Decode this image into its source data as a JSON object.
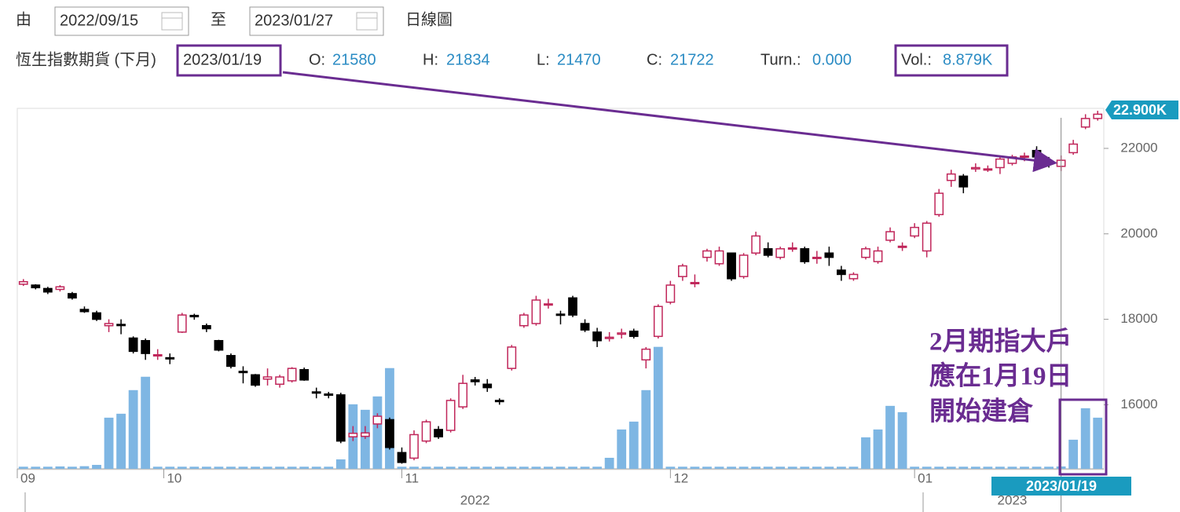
{
  "controls": {
    "from_label": "由",
    "from_date": "2022/09/15",
    "to_label": "至",
    "to_date": "2023/01/27",
    "chart_type": "日線圖"
  },
  "info": {
    "instrument": "恆生指數期貨 (下月)",
    "date": "2023/01/19",
    "open_label": "O:",
    "open": "21580",
    "high_label": "H:",
    "high": "21834",
    "low_label": "L:",
    "low": "21470",
    "close_label": "C:",
    "close": "21722",
    "turnover_label": "Turn.:",
    "turnover": "0.000",
    "volume_label": "Vol.:",
    "volume": "8.879K"
  },
  "annotation": [
    "2月期指大戶",
    "應在1月19日",
    "開始建倉"
  ],
  "chart_data": {
    "type": "candlestick",
    "up_color": "#c0265a",
    "down_color": "#000000",
    "volume_color": "#7eb6e3",
    "ylim": [
      14500,
      22900
    ],
    "yticks": [
      16000,
      18000,
      20000,
      22000
    ],
    "last_price": {
      "value": 22900,
      "label": "22.900K"
    },
    "y2lim": [
      0,
      500
    ],
    "xlim": [
      -0.5,
      88.5
    ],
    "xticks": [
      {
        "value": -0.5,
        "label": "09"
      },
      {
        "value": 11.5,
        "label": "10"
      },
      {
        "value": 31,
        "label": "11"
      },
      {
        "value": 53,
        "label": "12"
      },
      {
        "value": 73,
        "label": "01"
      }
    ],
    "year_ticks": [
      {
        "value": 37,
        "label": "2022"
      },
      {
        "value": 81,
        "label": "2023"
      }
    ],
    "cursor": {
      "value": 85,
      "label": "2023/01/19"
    },
    "open": [
      18820,
      18800,
      18720,
      18700,
      18600,
      18230,
      18150,
      17850,
      17880,
      17560,
      17500,
      17150,
      17100,
      17700,
      18090,
      17850,
      17500,
      17150,
      16780,
      16700,
      16600,
      16480,
      16560,
      16820,
      16300,
      16250,
      16230,
      15250,
      15260,
      15550,
      15650,
      14880,
      14750,
      15150,
      15420,
      15400,
      15950,
      16580,
      16480,
      16100,
      16850,
      17850,
      17900,
      18350,
      18120,
      18500,
      17900,
      17700,
      17550,
      17650,
      17720,
      17050,
      17600,
      18400,
      19000,
      18850,
      19450,
      19300,
      19550,
      19000,
      19550,
      19650,
      19450,
      19650,
      19650,
      19430,
      19550,
      19150,
      18950,
      19450,
      19350,
      19850,
      19700,
      19950,
      19600,
      20450,
      21250,
      21350,
      21520,
      21500,
      21550,
      21650,
      21800,
      21950,
      21700,
      21580,
      21900,
      22500,
      22700
    ],
    "high": [
      18940,
      18820,
      18760,
      18800,
      18640,
      18300,
      18200,
      18000,
      18000,
      17600,
      17550,
      17300,
      17200,
      18150,
      18130,
      17900,
      17520,
      17200,
      16900,
      16720,
      16850,
      16700,
      16880,
      16870,
      16400,
      16300,
      16280,
      15500,
      15500,
      15800,
      15700,
      15000,
      15400,
      15650,
      15500,
      16150,
      16700,
      16650,
      16600,
      16150,
      17400,
      18150,
      18550,
      18480,
      18200,
      18550,
      18000,
      17800,
      17700,
      17780,
      17780,
      17350,
      18350,
      18900,
      19300,
      19050,
      19650,
      19700,
      19550,
      19550,
      20050,
      19800,
      19700,
      19800,
      19700,
      19600,
      19700,
      19250,
      19100,
      19700,
      19700,
      20150,
      19800,
      20250,
      20300,
      21050,
      21500,
      21400,
      21650,
      21600,
      21800,
      21850,
      21900,
      22050,
      21800,
      21834,
      22200,
      22800,
      22880
    ],
    "low": [
      18780,
      18700,
      18590,
      18650,
      18460,
      18150,
      17960,
      17700,
      17650,
      17200,
      17050,
      17050,
      16950,
      17680,
      17990,
      17700,
      17250,
      16850,
      16500,
      16420,
      16450,
      16400,
      16520,
      16560,
      16150,
      16150,
      15100,
      15150,
      15200,
      15450,
      14950,
      14620,
      14700,
      15100,
      15200,
      15350,
      15900,
      16450,
      16300,
      16000,
      16800,
      17800,
      17850,
      18250,
      17880,
      18050,
      17700,
      17350,
      17480,
      17550,
      17550,
      16850,
      17550,
      18350,
      18900,
      18750,
      19350,
      19250,
      18900,
      18950,
      19500,
      19450,
      19400,
      19580,
      19300,
      19300,
      19250,
      18900,
      18900,
      19400,
      19300,
      19800,
      19600,
      19900,
      19450,
      20400,
      21100,
      20950,
      21450,
      21450,
      21400,
      21600,
      21700,
      21700,
      21550,
      21470,
      21850,
      22450,
      22650
    ],
    "close": [
      18880,
      18740,
      18640,
      18760,
      18500,
      18180,
      18000,
      17900,
      17860,
      17250,
      17200,
      17170,
      17080,
      18100,
      18060,
      17780,
      17280,
      16900,
      16760,
      16460,
      16650,
      16650,
      16850,
      16580,
      16280,
      16230,
      15150,
      15330,
      15340,
      15730,
      15000,
      14650,
      15300,
      15600,
      15250,
      16100,
      16500,
      16540,
      16400,
      16080,
      17350,
      18100,
      18450,
      18360,
      18100,
      18100,
      17750,
      17500,
      17580,
      17680,
      17600,
      17300,
      18300,
      18800,
      19250,
      18860,
      19600,
      19600,
      18950,
      19500,
      19950,
      19500,
      19650,
      19670,
      19350,
      19450,
      19450,
      19050,
      19050,
      19650,
      19600,
      20050,
      19710,
      20150,
      20250,
      20950,
      21400,
      21100,
      21550,
      21520,
      21750,
      21800,
      21820,
      21800,
      21680,
      21722,
      22100,
      22700,
      22800
    ],
    "volume": [
      8,
      8,
      8,
      9,
      8,
      10,
      15,
      195,
      210,
      300,
      351,
      8,
      8,
      8,
      8,
      8,
      8,
      8,
      8,
      8,
      8,
      8,
      8,
      8,
      8,
      8,
      36,
      246,
      225,
      276,
      384,
      8,
      8,
      8,
      8,
      8,
      8,
      8,
      8,
      8,
      8,
      8,
      8,
      8,
      8,
      8,
      8,
      8,
      42,
      150,
      180,
      300,
      465,
      8,
      8,
      8,
      8,
      8,
      8,
      8,
      8,
      8,
      8,
      8,
      8,
      8,
      8,
      8,
      8,
      120,
      150,
      240,
      216,
      8,
      8,
      8,
      8,
      8,
      8,
      8,
      8,
      8,
      8,
      8,
      8,
      8.879,
      111,
      231,
      195
    ]
  }
}
